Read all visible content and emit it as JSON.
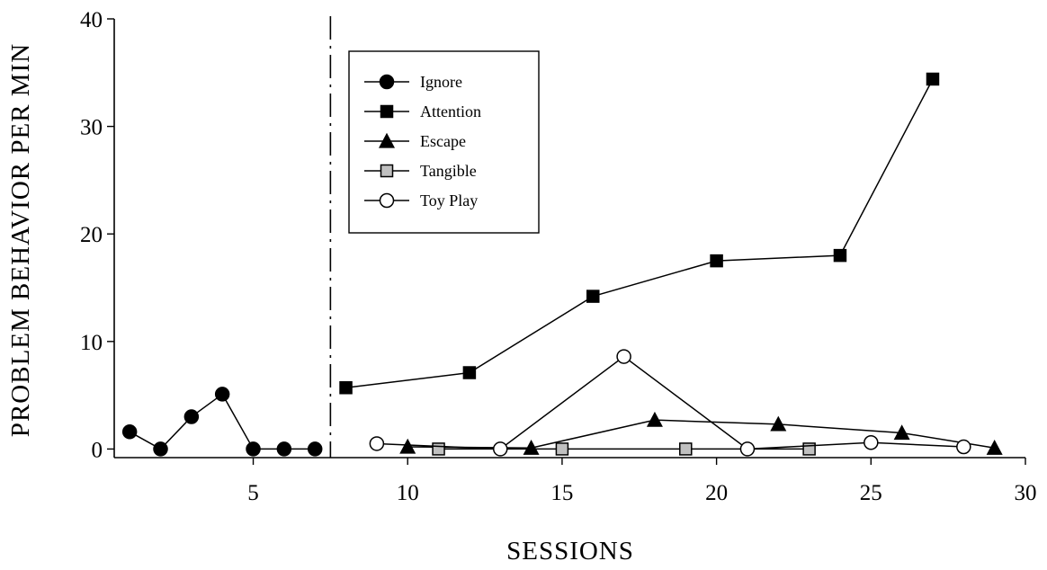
{
  "chart_data": {
    "type": "line",
    "title": "",
    "xlabel": "SESSIONS",
    "ylabel": "PROBLEM BEHAVIOR PER MIN",
    "xlim": [
      0.5,
      30
    ],
    "ylim": [
      -0.8,
      40
    ],
    "xticks": [
      5,
      10,
      15,
      20,
      25,
      30
    ],
    "yticks": [
      0,
      10,
      20,
      30,
      40
    ],
    "phase_change_line_x": 7.5,
    "grid": false,
    "legend_position": "top-left",
    "series": [
      {
        "name": "Ignore",
        "marker": "circle",
        "fill": "#000000",
        "x": [
          1,
          2,
          3,
          4,
          5,
          6,
          7
        ],
        "y": [
          1.6,
          0,
          3.0,
          5.1,
          0,
          0,
          0
        ]
      },
      {
        "name": "Attention",
        "marker": "square",
        "fill": "#000000",
        "x": [
          8,
          12,
          16,
          20,
          24,
          27
        ],
        "y": [
          5.7,
          7.1,
          14.2,
          17.5,
          18.0,
          34.4
        ]
      },
      {
        "name": "Escape",
        "marker": "triangle",
        "fill": "#000000",
        "x": [
          10,
          14,
          18,
          22,
          26,
          29
        ],
        "y": [
          0.2,
          0.1,
          2.7,
          2.3,
          1.5,
          0.1
        ]
      },
      {
        "name": "Tangible",
        "marker": "square",
        "fill": "#c0c0c0",
        "x": [
          11,
          15,
          19,
          23
        ],
        "y": [
          0,
          0,
          0,
          0
        ]
      },
      {
        "name": "Toy Play",
        "marker": "circle",
        "fill": "#ffffff",
        "x": [
          9,
          13,
          17,
          21,
          25,
          28
        ],
        "y": [
          0.5,
          0,
          8.6,
          0,
          0.6,
          0.2
        ]
      }
    ]
  }
}
